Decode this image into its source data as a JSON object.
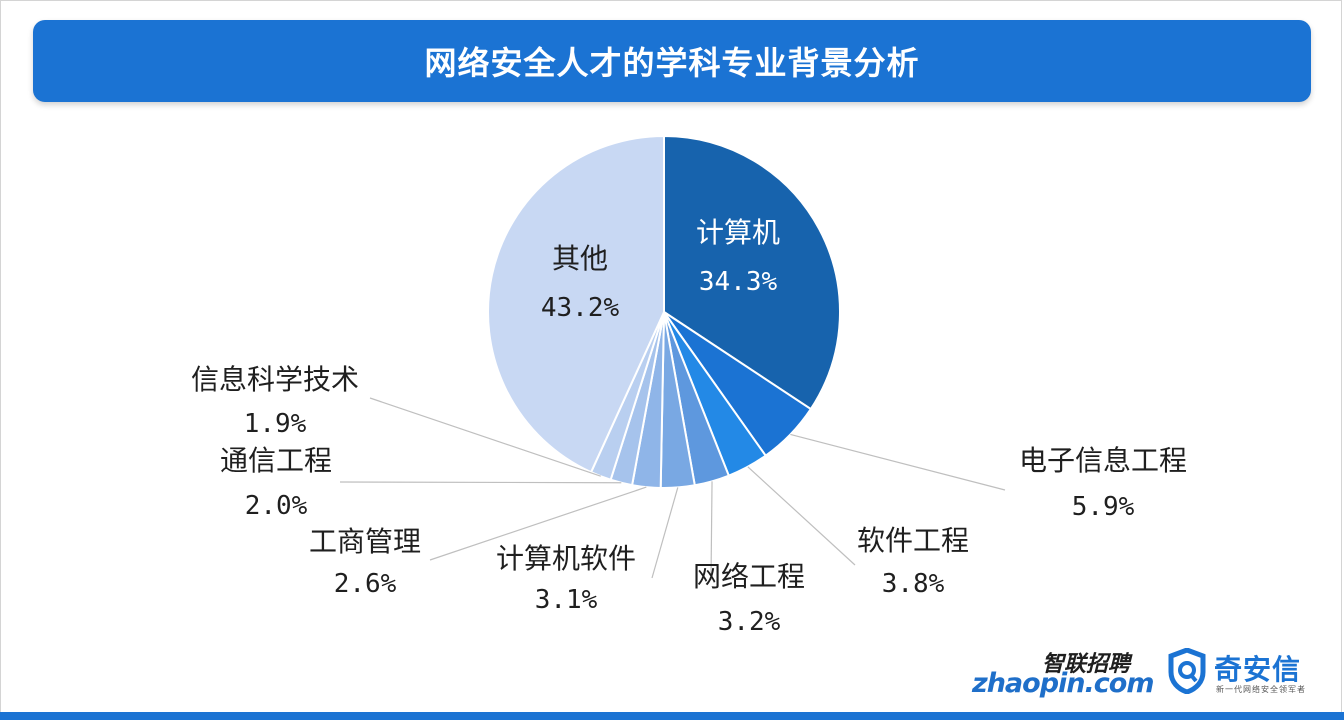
{
  "header": {
    "title": "网络安全人才的学科专业背景分析"
  },
  "chart_data": {
    "type": "pie",
    "title": "网络安全人才的学科专业背景分析",
    "slices": [
      {
        "label": "计算机",
        "value": 34.3,
        "value_label": "34.3%",
        "color": "#1763ad"
      },
      {
        "label": "电子信息工程",
        "value": 5.9,
        "value_label": "5.9%",
        "color": "#1b73d3"
      },
      {
        "label": "软件工程",
        "value": 3.8,
        "value_label": "3.8%",
        "color": "#2389e6"
      },
      {
        "label": "网络工程",
        "value": 3.2,
        "value_label": "3.2%",
        "color": "#5e98de"
      },
      {
        "label": "计算机软件",
        "value": 3.1,
        "value_label": "3.1%",
        "color": "#79a8e3"
      },
      {
        "label": "工商管理",
        "value": 2.6,
        "value_label": "2.6%",
        "color": "#8fb5e8"
      },
      {
        "label": "通信工程",
        "value": 2.0,
        "value_label": "2.0%",
        "color": "#a6c3ec"
      },
      {
        "label": "信息科学技术",
        "value": 1.9,
        "value_label": "1.9%",
        "color": "#b9cff0"
      },
      {
        "label": "其他",
        "value": 43.2,
        "value_label": "43.2%",
        "color": "#c8d8f3"
      }
    ]
  },
  "logos": {
    "zhaopin_cn": "智联招聘",
    "zhaopin_en": "zhaopin.com",
    "qax_name": "奇安信",
    "qax_slogan": "新一代网络安全领军者"
  }
}
